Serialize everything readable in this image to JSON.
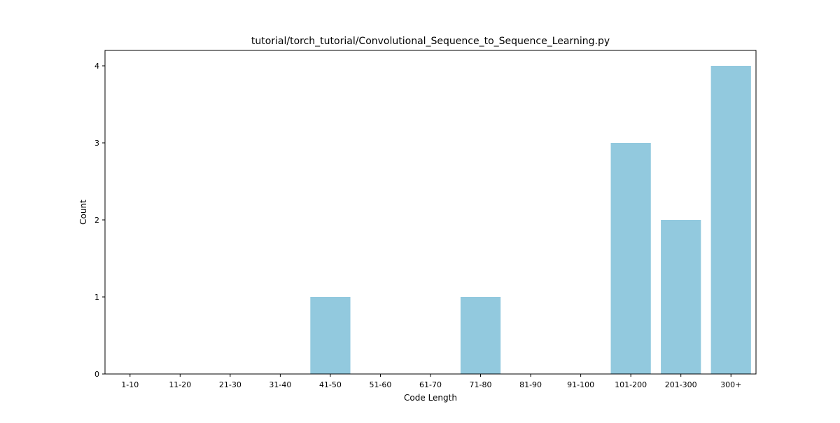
{
  "chart_data": {
    "type": "bar",
    "title": "tutorial/torch_tutorial/Convolutional_Sequence_to_Sequence_Learning.py",
    "xlabel": "Code Length",
    "ylabel": "Count",
    "categories": [
      "1-10",
      "11-20",
      "21-30",
      "31-40",
      "41-50",
      "51-60",
      "61-70",
      "71-80",
      "81-90",
      "91-100",
      "101-200",
      "201-300",
      "300+"
    ],
    "values": [
      0,
      0,
      0,
      0,
      1,
      0,
      0,
      1,
      0,
      0,
      3,
      2,
      4
    ],
    "ylim": [
      0,
      4.2
    ],
    "yticks": [
      0,
      1,
      2,
      3,
      4
    ],
    "bar_color": "#92c9de",
    "grid": false,
    "legend": "none"
  }
}
